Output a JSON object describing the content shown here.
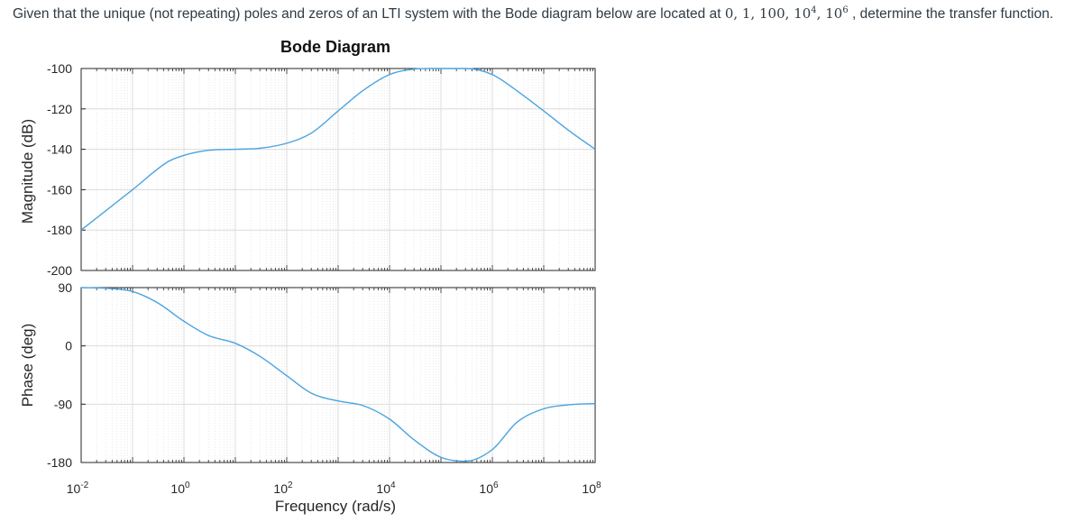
{
  "question": {
    "prefix": "Given that the unique (not repeating) poles and zeros of an LTI system with the Bode diagram below are located at",
    "values": [
      "0",
      "1",
      "100",
      "10",
      "4",
      "10",
      "6"
    ],
    "suffix": ", determine the transfer function."
  },
  "chart_data": {
    "type": "line",
    "title": "Bode Diagram",
    "xlabel": "Frequency  (rad/s)",
    "xscale": "log",
    "xlim": [
      0.01,
      100000000
    ],
    "x_ticks": [
      {
        "base": "10",
        "exp": "-2"
      },
      {
        "base": "10",
        "exp": "0"
      },
      {
        "base": "10",
        "exp": "2"
      },
      {
        "base": "10",
        "exp": "4"
      },
      {
        "base": "10",
        "exp": "6"
      },
      {
        "base": "10",
        "exp": "8"
      }
    ],
    "grid": true,
    "line_color": "#4aa3df",
    "panels": [
      {
        "name": "magnitude",
        "ylabel": "Magnitude (dB)",
        "ylim": [
          -200,
          -100
        ],
        "y_ticks": [
          "-100",
          "-120",
          "-140",
          "-160",
          "-180",
          "-200"
        ],
        "series": [
          {
            "x": [
              0.01,
              0.1,
              0.5,
              1,
              3,
              10,
              30,
              100,
              300,
              1000,
              3000,
              10000,
              30000,
              100000,
              300000,
              1000000,
              3000000,
              10000000,
              30000000,
              100000000
            ],
            "y": [
              -180,
              -160,
              -146,
              -143,
              -140.5,
              -140,
              -139.5,
              -137,
              -132,
              -121,
              -111,
              -103,
              -100.3,
              -100,
              -100,
              -103,
              -111,
              -121,
              -130.5,
              -140
            ]
          }
        ]
      },
      {
        "name": "phase",
        "ylabel": "Phase (deg)",
        "ylim": [
          -180,
          90
        ],
        "y_ticks": [
          "90",
          "0",
          "-90",
          "-180"
        ],
        "series": [
          {
            "x": [
              0.01,
              0.03,
              0.1,
              0.3,
              1,
              3,
              10,
              30,
              100,
              300,
              1000,
              3000,
              10000,
              30000,
              100000,
              300000,
              1000000,
              3000000,
              10000000,
              30000000,
              100000000
            ],
            "y": [
              90,
              89,
              84,
              67,
              38,
              16,
              4,
              -16,
              -46,
              -73,
              -85,
              -92,
              -113,
              -145,
              -172,
              -178,
              -160,
              -118,
              -97,
              -91,
              -89
            ]
          }
        ]
      }
    ]
  }
}
